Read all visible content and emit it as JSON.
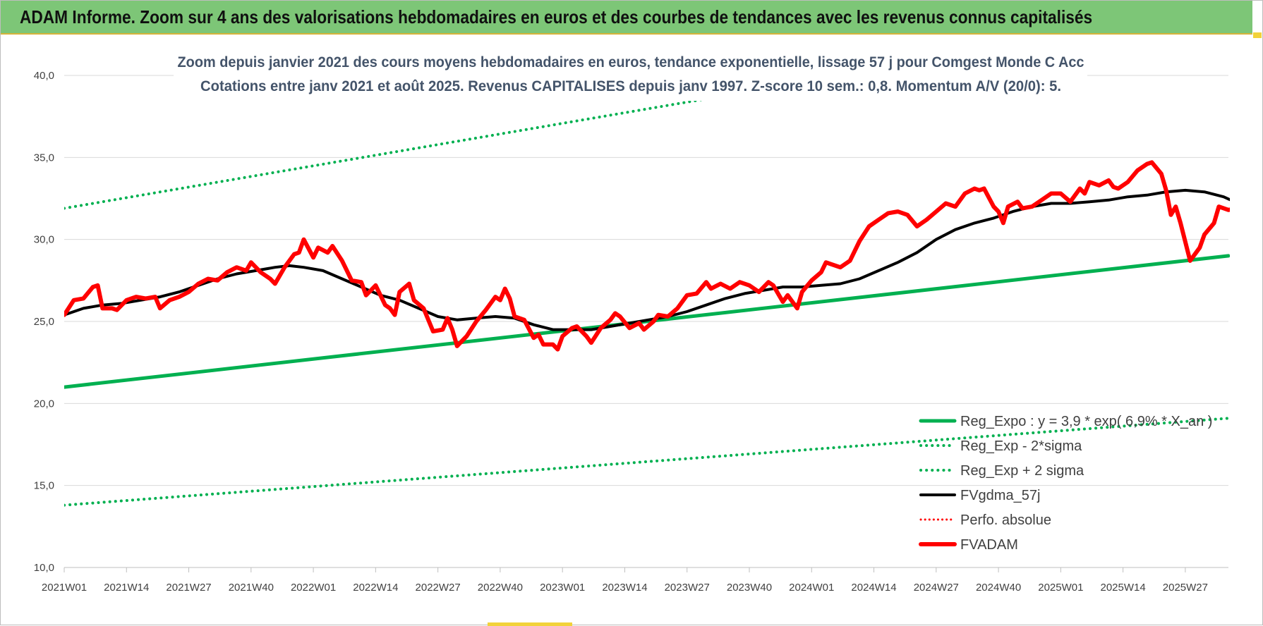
{
  "banner": {
    "title": "ADAM Informe. Zoom sur 4 ans des valorisations hebdomadaires en euros et des courbes de tendances avec les revenus connus capitalisés"
  },
  "colors": {
    "banner_bg": "#7dc677",
    "reg_expo": "#00b050",
    "sigma": "#00b050",
    "fvgdma": "#000000",
    "perfo": "#ff0000",
    "fvadam": "#ff0000"
  },
  "chart_data": {
    "type": "line",
    "title": "Zoom depuis janvier 2021 des cours moyens hebdomadaires en euros, tendance exponentielle, lissage 57 j pour Comgest Monde C Acc",
    "subtitle": "Cotations entre janv 2021 et août 2025. Revenus CAPITALISES depuis janv 1997. Z-score 10 sem.: 0,8. Momentum A/V (20/0): 5.",
    "xlabel": "",
    "ylabel": "",
    "ylim": [
      10,
      40
    ],
    "yticks": [
      "10,0",
      "15,0",
      "20,0",
      "25,0",
      "30,0",
      "35,0",
      "40,0"
    ],
    "x_tick_labels": [
      "2021W01",
      "2021W14",
      "2021W27",
      "2021W40",
      "2022W01",
      "2022W14",
      "2022W27",
      "2022W40",
      "2023W01",
      "2023W14",
      "2023W27",
      "2023W40",
      "2024W01",
      "2024W14",
      "2024W27",
      "2024W40",
      "2025W01",
      "2025W14",
      "2025W27"
    ],
    "x_range_weeks": [
      0,
      243
    ],
    "grid": "horizontal",
    "legend_position": "bottom-right",
    "legend": [
      {
        "key": "reg_expo",
        "label": "Reg_Expo : y = 3,9 * exp( 6,9% * X_an )",
        "style": "solid"
      },
      {
        "key": "reg_minus",
        "label": "Reg_Exp - 2*sigma",
        "style": "dotted"
      },
      {
        "key": "reg_plus",
        "label": "Reg_Exp + 2 sigma",
        "style": "dotted"
      },
      {
        "key": "fvgdma",
        "label": "FVgdma_57j",
        "style": "solid"
      },
      {
        "key": "perfo",
        "label": "Perfo. absolue",
        "style": "dotted"
      },
      {
        "key": "fvadam",
        "label": "FVADAM",
        "style": "solid"
      }
    ],
    "series": [
      {
        "key": "reg_expo",
        "points": [
          [
            0,
            21.0
          ],
          [
            243,
            29.0
          ]
        ]
      },
      {
        "key": "reg_minus",
        "points": [
          [
            0,
            13.8
          ],
          [
            243,
            19.1
          ]
        ]
      },
      {
        "key": "reg_plus",
        "points": [
          [
            0,
            31.9
          ],
          [
            243,
            44.0
          ]
        ]
      },
      {
        "key": "fvgdma",
        "points": [
          [
            0,
            25.4
          ],
          [
            4,
            25.8
          ],
          [
            8,
            26.0
          ],
          [
            12,
            26.1
          ],
          [
            16,
            26.3
          ],
          [
            20,
            26.5
          ],
          [
            24,
            26.8
          ],
          [
            28,
            27.2
          ],
          [
            32,
            27.6
          ],
          [
            36,
            27.9
          ],
          [
            40,
            28.1
          ],
          [
            44,
            28.3
          ],
          [
            47,
            28.4
          ],
          [
            50,
            28.3
          ],
          [
            54,
            28.1
          ],
          [
            58,
            27.6
          ],
          [
            62,
            27.1
          ],
          [
            66,
            26.6
          ],
          [
            70,
            26.3
          ],
          [
            74,
            25.8
          ],
          [
            78,
            25.3
          ],
          [
            82,
            25.1
          ],
          [
            86,
            25.2
          ],
          [
            90,
            25.3
          ],
          [
            94,
            25.2
          ],
          [
            98,
            24.8
          ],
          [
            102,
            24.5
          ],
          [
            106,
            24.5
          ],
          [
            110,
            24.5
          ],
          [
            114,
            24.7
          ],
          [
            118,
            24.9
          ],
          [
            122,
            25.1
          ],
          [
            126,
            25.3
          ],
          [
            130,
            25.6
          ],
          [
            134,
            26.0
          ],
          [
            138,
            26.4
          ],
          [
            142,
            26.7
          ],
          [
            146,
            26.9
          ],
          [
            150,
            27.1
          ],
          [
            154,
            27.1
          ],
          [
            158,
            27.2
          ],
          [
            162,
            27.3
          ],
          [
            166,
            27.6
          ],
          [
            170,
            28.1
          ],
          [
            174,
            28.6
          ],
          [
            178,
            29.2
          ],
          [
            182,
            30.0
          ],
          [
            186,
            30.6
          ],
          [
            190,
            31.0
          ],
          [
            194,
            31.3
          ],
          [
            198,
            31.7
          ],
          [
            202,
            32.0
          ],
          [
            206,
            32.2
          ],
          [
            210,
            32.2
          ],
          [
            214,
            32.3
          ],
          [
            218,
            32.4
          ],
          [
            222,
            32.6
          ],
          [
            226,
            32.7
          ],
          [
            230,
            32.9
          ],
          [
            234,
            33.0
          ],
          [
            238,
            32.9
          ],
          [
            242,
            32.6
          ],
          [
            245,
            32.2
          ],
          [
            248,
            31.7
          ],
          [
            252,
            31.6
          ],
          [
            256,
            31.7
          ],
          [
            262,
            31.8
          ],
          [
            268,
            31.9
          ],
          [
            270,
            32.0
          ]
        ]
      },
      {
        "key": "fvadam",
        "points": [
          [
            0,
            25.4
          ],
          [
            2,
            26.3
          ],
          [
            4,
            26.4
          ],
          [
            6,
            27.1
          ],
          [
            7,
            27.2
          ],
          [
            8,
            25.8
          ],
          [
            10,
            25.8
          ],
          [
            11,
            25.7
          ],
          [
            13,
            26.3
          ],
          [
            15,
            26.5
          ],
          [
            17,
            26.4
          ],
          [
            19,
            26.5
          ],
          [
            20,
            25.8
          ],
          [
            22,
            26.3
          ],
          [
            24,
            26.5
          ],
          [
            26,
            26.8
          ],
          [
            28,
            27.3
          ],
          [
            30,
            27.6
          ],
          [
            32,
            27.5
          ],
          [
            34,
            28.0
          ],
          [
            36,
            28.3
          ],
          [
            38,
            28.1
          ],
          [
            39,
            28.6
          ],
          [
            41,
            28.0
          ],
          [
            43,
            27.6
          ],
          [
            44,
            27.3
          ],
          [
            46,
            28.3
          ],
          [
            48,
            29.1
          ],
          [
            49,
            29.2
          ],
          [
            50,
            30.0
          ],
          [
            52,
            28.9
          ],
          [
            53,
            29.5
          ],
          [
            55,
            29.2
          ],
          [
            56,
            29.6
          ],
          [
            58,
            28.7
          ],
          [
            60,
            27.5
          ],
          [
            62,
            27.4
          ],
          [
            63,
            26.6
          ],
          [
            65,
            27.2
          ],
          [
            67,
            26.0
          ],
          [
            68,
            25.8
          ],
          [
            69,
            25.4
          ],
          [
            70,
            26.8
          ],
          [
            72,
            27.3
          ],
          [
            73,
            26.3
          ],
          [
            75,
            25.8
          ],
          [
            77,
            24.4
          ],
          [
            79,
            24.5
          ],
          [
            80,
            25.2
          ],
          [
            81,
            24.5
          ],
          [
            82,
            23.5
          ],
          [
            84,
            24.1
          ],
          [
            86,
            25.0
          ],
          [
            88,
            25.7
          ],
          [
            90,
            26.5
          ],
          [
            91,
            26.3
          ],
          [
            92,
            27.0
          ],
          [
            93,
            26.4
          ],
          [
            94,
            25.3
          ],
          [
            96,
            25.1
          ],
          [
            98,
            24.0
          ],
          [
            99,
            24.2
          ],
          [
            100,
            23.6
          ],
          [
            102,
            23.6
          ],
          [
            103,
            23.3
          ],
          [
            104,
            24.1
          ],
          [
            106,
            24.6
          ],
          [
            107,
            24.7
          ],
          [
            109,
            24.1
          ],
          [
            110,
            23.7
          ],
          [
            112,
            24.6
          ],
          [
            114,
            25.1
          ],
          [
            115,
            25.5
          ],
          [
            116,
            25.3
          ],
          [
            118,
            24.6
          ],
          [
            120,
            24.9
          ],
          [
            121,
            24.5
          ],
          [
            123,
            25.0
          ],
          [
            124,
            25.4
          ],
          [
            126,
            25.3
          ],
          [
            128,
            25.8
          ],
          [
            130,
            26.6
          ],
          [
            132,
            26.7
          ],
          [
            134,
            27.4
          ],
          [
            135,
            27.0
          ],
          [
            137,
            27.3
          ],
          [
            139,
            27.0
          ],
          [
            141,
            27.4
          ],
          [
            143,
            27.2
          ],
          [
            145,
            26.8
          ],
          [
            147,
            27.4
          ],
          [
            148,
            27.2
          ],
          [
            150,
            26.2
          ],
          [
            151,
            26.6
          ],
          [
            153,
            25.8
          ],
          [
            154,
            26.8
          ],
          [
            156,
            27.5
          ],
          [
            158,
            28.0
          ],
          [
            159,
            28.6
          ],
          [
            160,
            28.5
          ],
          [
            162,
            28.3
          ],
          [
            164,
            28.7
          ],
          [
            166,
            29.9
          ],
          [
            168,
            30.8
          ],
          [
            170,
            31.2
          ],
          [
            172,
            31.6
          ],
          [
            174,
            31.7
          ],
          [
            176,
            31.5
          ],
          [
            178,
            30.8
          ],
          [
            180,
            31.2
          ],
          [
            182,
            31.7
          ],
          [
            184,
            32.2
          ],
          [
            186,
            32.0
          ],
          [
            188,
            32.8
          ],
          [
            190,
            33.1
          ],
          [
            191,
            33.0
          ],
          [
            192,
            33.1
          ],
          [
            194,
            32.0
          ],
          [
            195,
            31.7
          ],
          [
            196,
            31.0
          ],
          [
            197,
            32.0
          ],
          [
            199,
            32.3
          ],
          [
            200,
            31.9
          ],
          [
            202,
            32.0
          ],
          [
            204,
            32.4
          ],
          [
            206,
            32.8
          ],
          [
            208,
            32.8
          ],
          [
            210,
            32.3
          ],
          [
            212,
            33.1
          ],
          [
            213,
            32.8
          ],
          [
            214,
            33.5
          ],
          [
            216,
            33.3
          ],
          [
            218,
            33.6
          ],
          [
            219,
            33.2
          ],
          [
            220,
            33.1
          ],
          [
            222,
            33.5
          ],
          [
            224,
            34.2
          ],
          [
            226,
            34.6
          ],
          [
            227,
            34.7
          ],
          [
            229,
            34.0
          ],
          [
            230,
            33.0
          ],
          [
            231,
            31.5
          ],
          [
            232,
            32.0
          ],
          [
            233,
            31.0
          ],
          [
            235,
            28.7
          ],
          [
            237,
            29.5
          ],
          [
            238,
            30.3
          ],
          [
            240,
            31.0
          ],
          [
            241,
            32.0
          ],
          [
            243,
            31.8
          ],
          [
            245,
            31.9
          ],
          [
            247,
            31.7
          ],
          [
            249,
            31.8
          ],
          [
            250,
            31.4
          ],
          [
            252,
            31.5
          ],
          [
            254,
            31.8
          ],
          [
            256,
            32.0
          ],
          [
            257,
            31.7
          ],
          [
            258,
            32.2
          ],
          [
            259,
            31.7
          ],
          [
            261,
            31.7
          ],
          [
            262,
            32.0
          ],
          [
            264,
            31.9
          ],
          [
            266,
            32.0
          ],
          [
            268,
            32.1
          ],
          [
            270,
            32.0
          ]
        ]
      }
    ]
  }
}
